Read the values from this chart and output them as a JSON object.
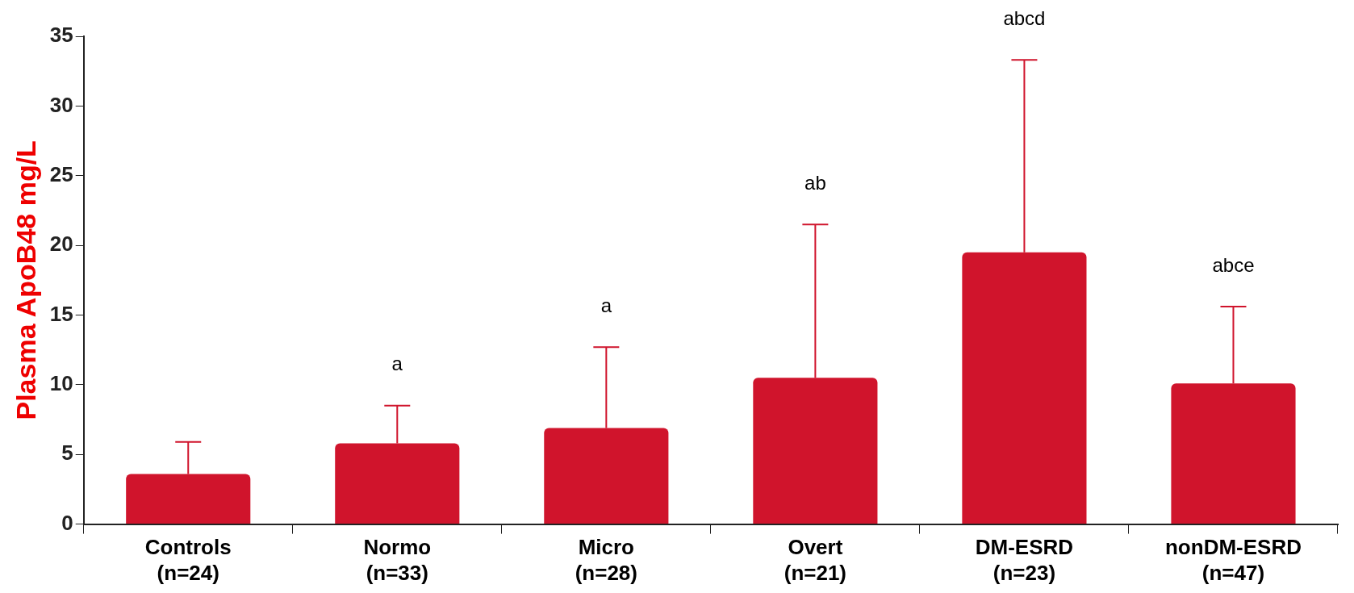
{
  "chart_data": {
    "type": "bar",
    "ylabel": "Plasma ApoB48 mg/L",
    "categories": [
      "Controls\n(n=24)",
      "Normo\n(n=33)",
      "Micro\n(n=28)",
      "Overt\n(n=21)",
      "DM-ESRD\n(n=23)",
      "nonDM-ESRD\n(n=47)"
    ],
    "values": [
      3.6,
      5.8,
      6.9,
      10.5,
      19.5,
      10.1
    ],
    "errors": [
      [
        3.6,
        5.9
      ],
      [
        5.8,
        8.5
      ],
      [
        6.9,
        12.7
      ],
      [
        10.5,
        21.5
      ],
      [
        19.5,
        33.3
      ],
      [
        10.1,
        15.6
      ]
    ],
    "color": "#d0142c",
    "ylim": [
      0,
      35
    ],
    "yticks": [
      0,
      5,
      10,
      15,
      20,
      25,
      30,
      35
    ],
    "annotations": [
      "a",
      "a",
      "ab",
      "abcd",
      "abce"
    ]
  }
}
